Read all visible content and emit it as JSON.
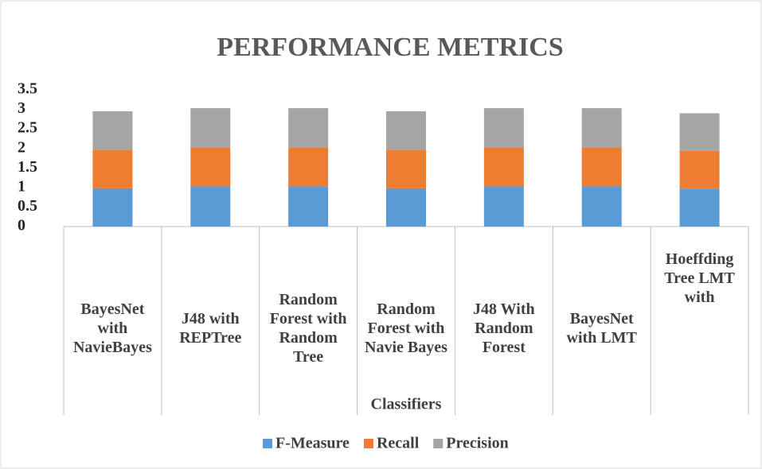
{
  "chart_data": {
    "type": "stacked_bar",
    "title": "PERFORMANCE METRICS",
    "x_label": "Classifiers",
    "categories": [
      "BayesNet with NavieBayes",
      "J48 with REPTree",
      "Random Forest with Random Tree",
      "Random Forest with Navie Bayes",
      "J48 With Random Forest",
      "BayesNet with LMT",
      "Hoeffding Tree LMT with"
    ],
    "series": [
      {
        "name": "F-Measure",
        "color": "#5b9bd5",
        "values": [
          0.98,
          1.03,
          1.03,
          0.98,
          1.03,
          1.03,
          0.97
        ]
      },
      {
        "name": "Recall",
        "color": "#ed7d31",
        "values": [
          0.99,
          1.0,
          1.0,
          0.99,
          1.0,
          1.0,
          0.97
        ]
      },
      {
        "name": "Precision",
        "color": "#a5a5a5",
        "values": [
          0.98,
          1.0,
          1.0,
          0.98,
          1.0,
          1.0,
          0.96
        ]
      }
    ],
    "ylim": [
      0,
      3.5
    ],
    "yticks": [
      0,
      0.5,
      1,
      1.5,
      2,
      2.5,
      3,
      3.5
    ],
    "grid": false,
    "legend": "bottom"
  }
}
